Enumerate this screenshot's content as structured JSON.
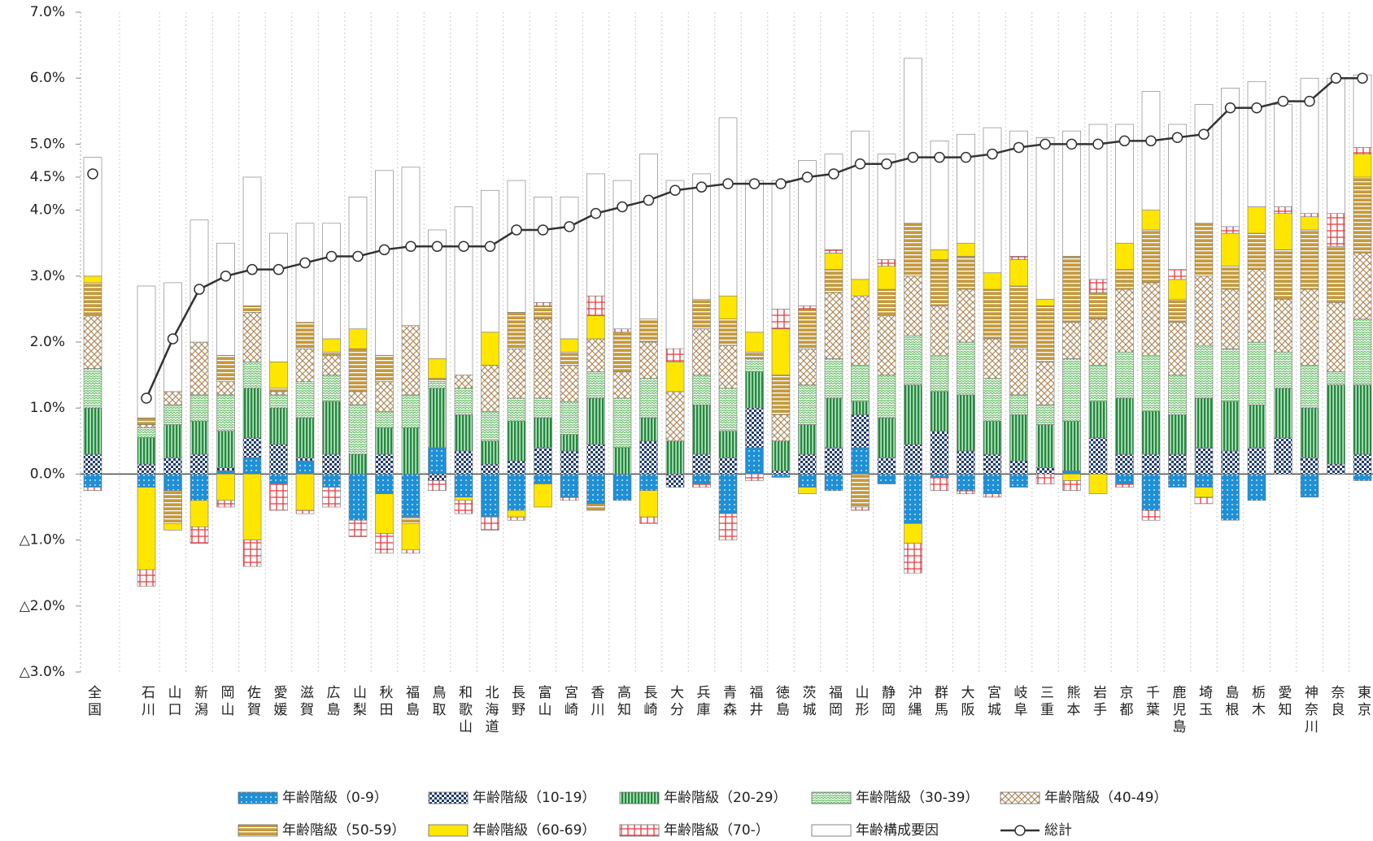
{
  "chart_data": {
    "type": "bar",
    "stacked": true,
    "categories": [
      "全国",
      "石川",
      "山口",
      "新潟",
      "岡山",
      "佐賀",
      "愛媛",
      "滋賀",
      "広島",
      "山梨",
      "秋田",
      "福島",
      "鳥取",
      "和歌山",
      "北海道",
      "長野",
      "富山",
      "宮崎",
      "香川",
      "高知",
      "長崎",
      "大分",
      "兵庫",
      "青森",
      "福井",
      "徳島",
      "茨城",
      "福岡",
      "山形",
      "静岡",
      "沖縄",
      "群馬",
      "大阪",
      "宮城",
      "岐阜",
      "三重",
      "熊本",
      "岩手",
      "京都",
      "千葉",
      "鹿児島",
      "埼玉",
      "島根",
      "栃木",
      "愛知",
      "神奈川",
      "奈良",
      "東京"
    ],
    "ylim": [
      -3,
      7
    ],
    "yticks": [
      {
        "value": 7,
        "label": "7.0%"
      },
      {
        "value": 6,
        "label": "6.0%"
      },
      {
        "value": 5,
        "label": "5.0%"
      },
      {
        "value": 4.5,
        "label": "4.5%"
      },
      {
        "value": 4,
        "label": "4.0%"
      },
      {
        "value": 3,
        "label": "3.0%"
      },
      {
        "value": 2,
        "label": "2.0%"
      },
      {
        "value": 1,
        "label": "1.0%"
      },
      {
        "value": 0,
        "label": "0.0%"
      },
      {
        "value": -1,
        "label": "△1.0%"
      },
      {
        "value": -2,
        "label": "△2.0%"
      },
      {
        "value": -3,
        "label": "△3.0%"
      }
    ],
    "series": [
      {
        "name": "年齢階級（0-9）",
        "color": "#1e90d6",
        "values": [
          -0.2,
          -0.2,
          -0.25,
          -0.4,
          0.05,
          0.25,
          -0.15,
          0.2,
          -0.2,
          -0.7,
          -0.3,
          -0.65,
          0.4,
          -0.35,
          -0.65,
          -0.55,
          -0.15,
          -0.35,
          -0.45,
          -0.4,
          -0.25,
          0,
          -0.15,
          -0.6,
          0.4,
          -0.05,
          -0.2,
          -0.25,
          0.4,
          -0.15,
          -0.75,
          -0.05,
          -0.25,
          -0.3,
          -0.2,
          0,
          0.05,
          0,
          -0.15,
          -0.55,
          -0.2,
          -0.2,
          -0.7,
          -0.4,
          0,
          -0.35,
          0,
          -0.1
        ]
      },
      {
        "name": "年齢階級（10-19）",
        "color": "#1f3b6e",
        "values": [
          0.3,
          0.15,
          0.25,
          0.3,
          0.05,
          0.3,
          0.45,
          0.05,
          0.3,
          0,
          0.3,
          0,
          -0.1,
          0.35,
          0.15,
          0.2,
          0.4,
          0.35,
          0.45,
          0,
          0.5,
          -0.2,
          0.3,
          0.25,
          0.6,
          0.05,
          0.3,
          0.4,
          0.5,
          0.25,
          0.45,
          0.65,
          0.35,
          0.3,
          0.2,
          0.1,
          0,
          0.55,
          0.3,
          0.3,
          0.3,
          0.4,
          0.35,
          0.4,
          0.55,
          0.25,
          0.15,
          0.3
        ]
      },
      {
        "name": "年齢階級（20-29）",
        "color": "#1e8c3a",
        "values": [
          0.7,
          0.4,
          0.5,
          0.5,
          0.55,
          0.75,
          0.55,
          0.6,
          0.8,
          0.3,
          0.4,
          0.7,
          0.9,
          0.55,
          0.35,
          0.6,
          0.45,
          0.25,
          0.7,
          0.4,
          0.35,
          0.5,
          0.75,
          0.4,
          0.55,
          0.45,
          0.45,
          0.75,
          0.2,
          0.6,
          0.9,
          0.6,
          0.85,
          0.5,
          0.7,
          0.65,
          0.75,
          0.55,
          0.85,
          0.65,
          0.6,
          0.75,
          0.75,
          0.65,
          0.75,
          0.75,
          1.2,
          1.05
        ]
      },
      {
        "name": "年齢階級（30-39）",
        "color": "#6dbf6d",
        "values": [
          0.6,
          0.15,
          0.3,
          0.4,
          0.55,
          0.4,
          0.2,
          0.55,
          0.4,
          0.75,
          0.25,
          0.5,
          0.1,
          0.4,
          0.45,
          0.35,
          0.3,
          0.5,
          0.4,
          0.75,
          0.6,
          0,
          0.45,
          0.65,
          0.2,
          0,
          0.6,
          0.6,
          0.55,
          0.65,
          0.75,
          0.55,
          0.8,
          0.65,
          0.3,
          0.3,
          0.95,
          0.55,
          0.7,
          0.85,
          0.6,
          0.8,
          0.8,
          0.95,
          0.55,
          0.65,
          0.2,
          1.0
        ]
      },
      {
        "name": "年齢階級（40-49）",
        "color": "#b08a5a",
        "values": [
          0.8,
          0.05,
          0.2,
          0.8,
          0.2,
          0.75,
          0.05,
          0.5,
          0.3,
          0.2,
          0.45,
          1.05,
          0,
          0.2,
          0.7,
          0.75,
          1.2,
          0.55,
          0.5,
          0.4,
          0.55,
          0.75,
          0.7,
          0.65,
          0,
          0.4,
          0.55,
          1.0,
          1.05,
          0.9,
          0.9,
          0.75,
          0.8,
          0.6,
          0.7,
          0.65,
          0.55,
          0.7,
          0.95,
          1.1,
          0.8,
          1.05,
          0.9,
          1.1,
          0.8,
          1.15,
          1.05,
          1.0
        ]
      },
      {
        "name": "年齢階級（50-59）",
        "color": "#c49a3c",
        "values": [
          0.5,
          0.1,
          -0.5,
          0,
          0.4,
          0.1,
          0.05,
          0.4,
          0.05,
          0.65,
          0.4,
          -0.1,
          0.05,
          0,
          0,
          0.55,
          0.2,
          0.2,
          -0.1,
          0.6,
          0.35,
          0,
          0.45,
          0.4,
          0.1,
          0.6,
          0.6,
          0.35,
          -0.5,
          0.4,
          0.8,
          0.7,
          0.5,
          0.75,
          0.95,
          0.85,
          1.0,
          0.4,
          0.3,
          0.8,
          0.35,
          0.8,
          0.35,
          0.55,
          0.75,
          0.9,
          0.85,
          1.15
        ]
      },
      {
        "name": "年齢階級（60-69）",
        "color": "#ffe600",
        "values": [
          0.1,
          -1.25,
          -0.1,
          -0.4,
          -0.4,
          -1.0,
          0.4,
          -0.55,
          0.2,
          0.3,
          -0.6,
          -0.4,
          0.3,
          -0.05,
          0.5,
          -0.1,
          -0.35,
          0.2,
          0.35,
          0,
          -0.4,
          0.45,
          0,
          0.35,
          0.3,
          0.7,
          -0.1,
          0.25,
          0.25,
          0.35,
          -0.3,
          0.15,
          0.2,
          0.25,
          0.4,
          0.1,
          -0.1,
          -0.3,
          0.4,
          0.3,
          0.3,
          -0.15,
          0.5,
          0.4,
          0.55,
          0.2,
          0,
          0.35
        ]
      },
      {
        "name": "年齢階級（70-）",
        "color": "#e8383d",
        "values": [
          -0.05,
          -0.25,
          0,
          -0.25,
          -0.1,
          -0.4,
          -0.4,
          -0.05,
          -0.3,
          -0.25,
          -0.3,
          -0.05,
          -0.15,
          -0.2,
          -0.2,
          -0.05,
          0.05,
          -0.05,
          0.3,
          0.05,
          -0.1,
          0.2,
          -0.05,
          -0.4,
          -0.1,
          0.3,
          0.05,
          0.05,
          -0.05,
          0.1,
          -0.45,
          -0.2,
          -0.05,
          -0.05,
          0.05,
          -0.15,
          -0.15,
          0.2,
          -0.05,
          -0.15,
          0.15,
          -0.1,
          0.1,
          0,
          0.1,
          0.05,
          0.5,
          0.1
        ]
      },
      {
        "name": "年齢構成要因",
        "color": "#999999",
        "values": [
          1.8,
          2.0,
          1.65,
          1.85,
          1.7,
          1.95,
          1.95,
          1.5,
          1.75,
          2.0,
          2.8,
          2.4,
          1.95,
          2.55,
          2.15,
          2.0,
          1.6,
          2.15,
          1.85,
          2.25,
          2.5,
          2.55,
          1.9,
          2.7,
          2.3,
          1.95,
          2.2,
          1.45,
          2.25,
          1.6,
          2.5,
          1.65,
          1.65,
          2.2,
          1.9,
          2.45,
          1.9,
          2.35,
          1.8,
          1.8,
          2.2,
          1.8,
          2.1,
          1.9,
          1.55,
          2.05,
          2.05,
          1.1
        ]
      },
      {
        "name": "総計",
        "type": "line",
        "color": "#333333",
        "values": [
          4.55,
          1.15,
          2.05,
          2.8,
          3.0,
          3.1,
          3.1,
          3.2,
          3.3,
          3.3,
          3.4,
          3.45,
          3.45,
          3.45,
          3.45,
          3.7,
          3.7,
          3.75,
          3.95,
          4.05,
          4.15,
          4.3,
          4.35,
          4.4,
          4.4,
          4.4,
          4.5,
          4.55,
          4.7,
          4.7,
          4.8,
          4.8,
          4.8,
          4.85,
          4.95,
          5.0,
          5.0,
          5.0,
          5.05,
          5.05,
          5.1,
          5.15,
          5.55,
          5.55,
          5.65,
          5.65,
          6.0,
          6.0
        ]
      }
    ]
  }
}
